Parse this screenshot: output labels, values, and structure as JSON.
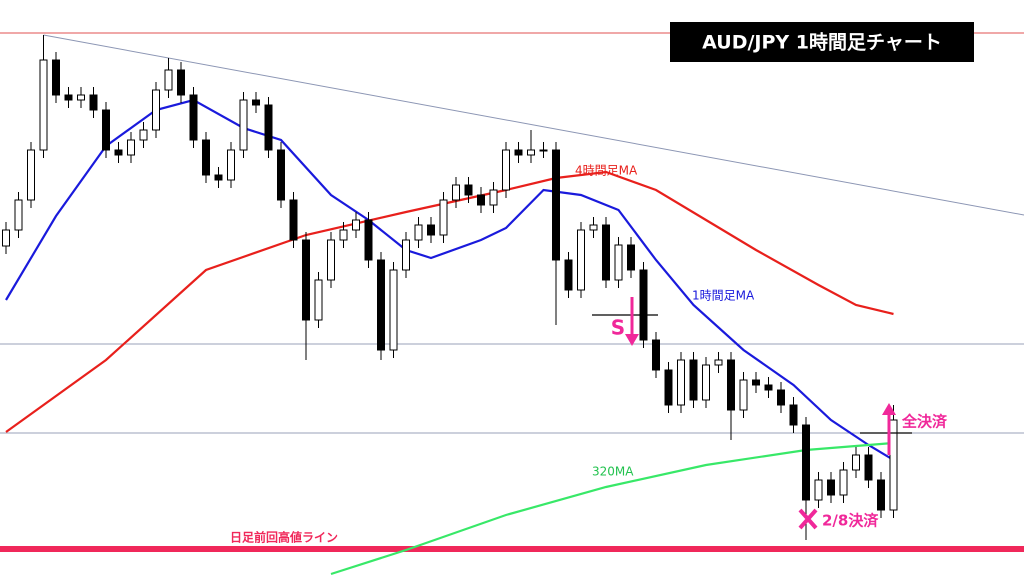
{
  "chart_data": {
    "type": "candlestick",
    "title": "AUD/JPY  1時間足チャート",
    "xlim": [
      -0.48,
      81.44
    ],
    "ylim": [
      0,
      576
    ],
    "x": [
      0,
      1,
      2,
      3,
      4,
      5,
      6,
      7,
      8,
      9,
      10,
      11,
      12,
      13,
      14,
      15,
      16,
      17,
      18,
      19,
      20,
      21,
      22,
      23,
      24,
      25,
      26,
      27,
      28,
      29,
      30,
      31,
      32,
      33,
      34,
      35,
      36,
      37,
      38,
      39,
      40,
      41,
      42,
      43,
      44,
      45,
      46,
      47,
      48,
      49,
      50,
      51,
      52,
      53,
      54,
      55,
      56,
      57,
      58,
      59,
      60,
      61,
      62,
      63,
      64,
      65,
      66,
      67,
      68,
      69,
      70,
      71
    ],
    "open": [
      330,
      346,
      376,
      426,
      516,
      481,
      476,
      481,
      466,
      426,
      421,
      436,
      446,
      486,
      506,
      481,
      436,
      401,
      396,
      426,
      476,
      471,
      426,
      376,
      336,
      256,
      296,
      336,
      346,
      356,
      316,
      226,
      306,
      336,
      351,
      341,
      376,
      391,
      381,
      371,
      386,
      426,
      421,
      426,
      426,
      316,
      286,
      346,
      351,
      296,
      331,
      306,
      236,
      206,
      171,
      216,
      176,
      211,
      216,
      166,
      196,
      191,
      186,
      171,
      151,
      76,
      96,
      81,
      106,
      121,
      96,
      66
    ],
    "high": [
      354,
      384,
      434,
      541,
      524,
      489,
      489,
      489,
      474,
      434,
      444,
      454,
      494,
      518,
      514,
      489,
      444,
      409,
      434,
      484,
      484,
      479,
      434,
      384,
      344,
      304,
      344,
      354,
      364,
      364,
      324,
      314,
      344,
      359,
      359,
      384,
      399,
      399,
      389,
      394,
      434,
      434,
      446,
      434,
      434,
      324,
      354,
      359,
      359,
      339,
      339,
      314,
      244,
      214,
      224,
      224,
      219,
      224,
      224,
      204,
      204,
      199,
      194,
      179,
      159,
      104,
      104,
      114,
      129,
      129,
      104,
      171
    ],
    "low": [
      322,
      338,
      368,
      418,
      473,
      468,
      468,
      458,
      418,
      413,
      413,
      428,
      438,
      478,
      473,
      428,
      393,
      388,
      388,
      418,
      463,
      418,
      368,
      328,
      216,
      248,
      288,
      328,
      338,
      308,
      216,
      218,
      298,
      328,
      333,
      333,
      368,
      373,
      363,
      363,
      378,
      413,
      413,
      418,
      251,
      278,
      278,
      338,
      288,
      288,
      298,
      228,
      198,
      163,
      163,
      168,
      168,
      203,
      136,
      158,
      183,
      178,
      163,
      143,
      36,
      68,
      73,
      73,
      98,
      88,
      58,
      58
    ],
    "close": [
      346,
      376,
      426,
      516,
      481,
      476,
      481,
      466,
      426,
      421,
      436,
      446,
      486,
      506,
      481,
      436,
      401,
      396,
      426,
      476,
      471,
      426,
      376,
      336,
      256,
      296,
      336,
      346,
      356,
      316,
      226,
      306,
      336,
      351,
      341,
      376,
      391,
      381,
      371,
      386,
      426,
      421,
      426,
      426,
      316,
      286,
      346,
      351,
      296,
      331,
      306,
      236,
      206,
      171,
      216,
      176,
      211,
      216,
      166,
      196,
      191,
      186,
      171,
      151,
      76,
      96,
      81,
      106,
      121,
      96,
      66,
      156
    ],
    "up_color": "#ffffff",
    "down_color": "#000000",
    "series": [
      {
        "name": "1時間足MA",
        "color": "#1a1adc",
        "x": [
          0,
          4,
          8,
          12,
          15,
          19,
          22,
          26,
          29,
          32,
          34,
          38,
          40,
          43,
          46,
          49,
          52,
          55,
          59,
          63,
          66,
          69,
          71
        ],
        "values": [
          276,
          360,
          430,
          466,
          476,
          448,
          436,
          381,
          356,
          326,
          318,
          336,
          348,
          386,
          381,
          366,
          316,
          271,
          226,
          191,
          156,
          131,
          116
        ]
      },
      {
        "name": "4時間足MA",
        "color": "#e8201c",
        "x": [
          0,
          8,
          16,
          24,
          32,
          40,
          44,
          48,
          52,
          56,
          60,
          65,
          68,
          71
        ],
        "values": [
          144,
          216,
          306,
          341,
          364,
          386,
          398,
          404,
          386,
          356,
          326,
          291,
          271,
          262
        ]
      },
      {
        "name": "320MA",
        "color": "#38e868",
        "x": [
          26,
          32,
          40,
          48,
          56,
          64,
          71
        ],
        "values": [
          2,
          26,
          61,
          89,
          111,
          126,
          133
        ]
      }
    ],
    "trendline": {
      "color": "#8c96b4",
      "x": [
        3,
        81.44
      ],
      "values": [
        541,
        361
      ]
    },
    "levels": [
      {
        "value": 543,
        "color": "#e05050",
        "width": 1
      },
      {
        "value": 232,
        "color": "#9aa0b8",
        "width": 1
      },
      {
        "value": 143,
        "color": "#9aa0b8",
        "width": 1
      },
      {
        "value": 27,
        "color": "#f0285a",
        "width": 6,
        "label": "日足前回高値ライン"
      }
    ],
    "annotations": [
      "S",
      "全決済",
      "2/8決済"
    ]
  }
}
